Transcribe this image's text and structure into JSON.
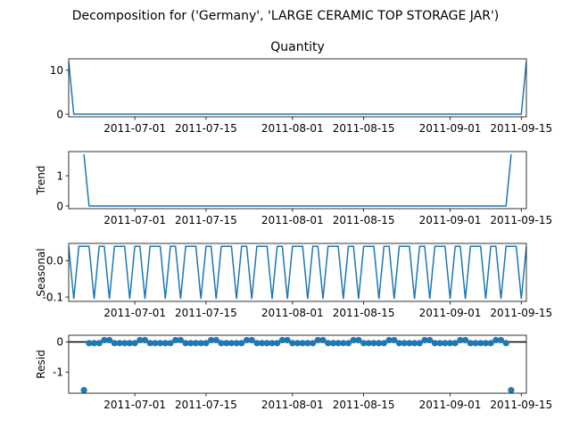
{
  "figure": {
    "suptitle": "Decomposition for ('Germany', 'LARGE CERAMIC TOP STORAGE JAR')",
    "line_color": "#1f77b4"
  },
  "chart_data": [
    {
      "type": "line",
      "title": "Quantity",
      "ylabel": "",
      "ylim": [
        -0.6,
        12.6
      ],
      "yticks": [
        0,
        10
      ],
      "xlim": [
        "2011-06-18",
        "2011-09-16"
      ],
      "xticks": [
        "2011-07-01",
        "2011-07-15",
        "2011-08-01",
        "2011-08-15",
        "2011-09-01",
        "2011-09-15"
      ],
      "points": [
        {
          "x": "2011-06-18",
          "y": 12
        },
        {
          "x": "2011-06-19",
          "y": 0
        },
        {
          "x": "2011-09-15",
          "y": 0
        },
        {
          "x": "2011-09-16",
          "y": 12
        }
      ]
    },
    {
      "type": "line",
      "title": "",
      "ylabel": "Trend",
      "ylim": [
        -0.09,
        1.8
      ],
      "yticks": [
        0,
        1
      ],
      "xlim": [
        "2011-06-18",
        "2011-09-16"
      ],
      "xticks": [
        "2011-07-01",
        "2011-07-15",
        "2011-08-01",
        "2011-08-15",
        "2011-09-01",
        "2011-09-15"
      ],
      "points": [
        {
          "x": "2011-06-21",
          "y": 1.71
        },
        {
          "x": "2011-06-22",
          "y": 0
        },
        {
          "x": "2011-09-12",
          "y": 0
        },
        {
          "x": "2011-09-13",
          "y": 1.71
        }
      ]
    },
    {
      "type": "line",
      "title": "",
      "ylabel": "Seasonal",
      "ylim": [
        -0.112,
        0.047
      ],
      "yticks": [
        -0.1,
        0.0
      ],
      "xlim": [
        "2011-06-18",
        "2011-09-16"
      ],
      "xticks": [
        "2011-07-01",
        "2011-07-15",
        "2011-08-01",
        "2011-08-15",
        "2011-09-01",
        "2011-09-15"
      ],
      "start": "2011-06-18",
      "end": "2011-09-16",
      "pattern": [
        0.039,
        -0.105,
        0.039,
        0.039,
        0.039,
        -0.105,
        0.039
      ]
    },
    {
      "type": "scatter",
      "title": "",
      "ylabel": "Resid",
      "ylim": [
        -1.7,
        0.22
      ],
      "yticks": [
        -1,
        0
      ],
      "xlim": [
        "2011-06-18",
        "2011-09-16"
      ],
      "xticks": [
        "2011-07-01",
        "2011-07-15",
        "2011-08-01",
        "2011-08-15",
        "2011-09-01",
        "2011-09-15"
      ],
      "baseline": 0,
      "start": "2011-06-21",
      "end": "2011-09-13",
      "pattern": [
        -0.04,
        -0.04,
        -0.04,
        -0.04,
        0.06,
        0.06,
        -0.04
      ],
      "outliers": [
        {
          "x": "2011-06-21",
          "y": -1.6
        },
        {
          "x": "2011-09-13",
          "y": -1.6
        }
      ]
    }
  ]
}
